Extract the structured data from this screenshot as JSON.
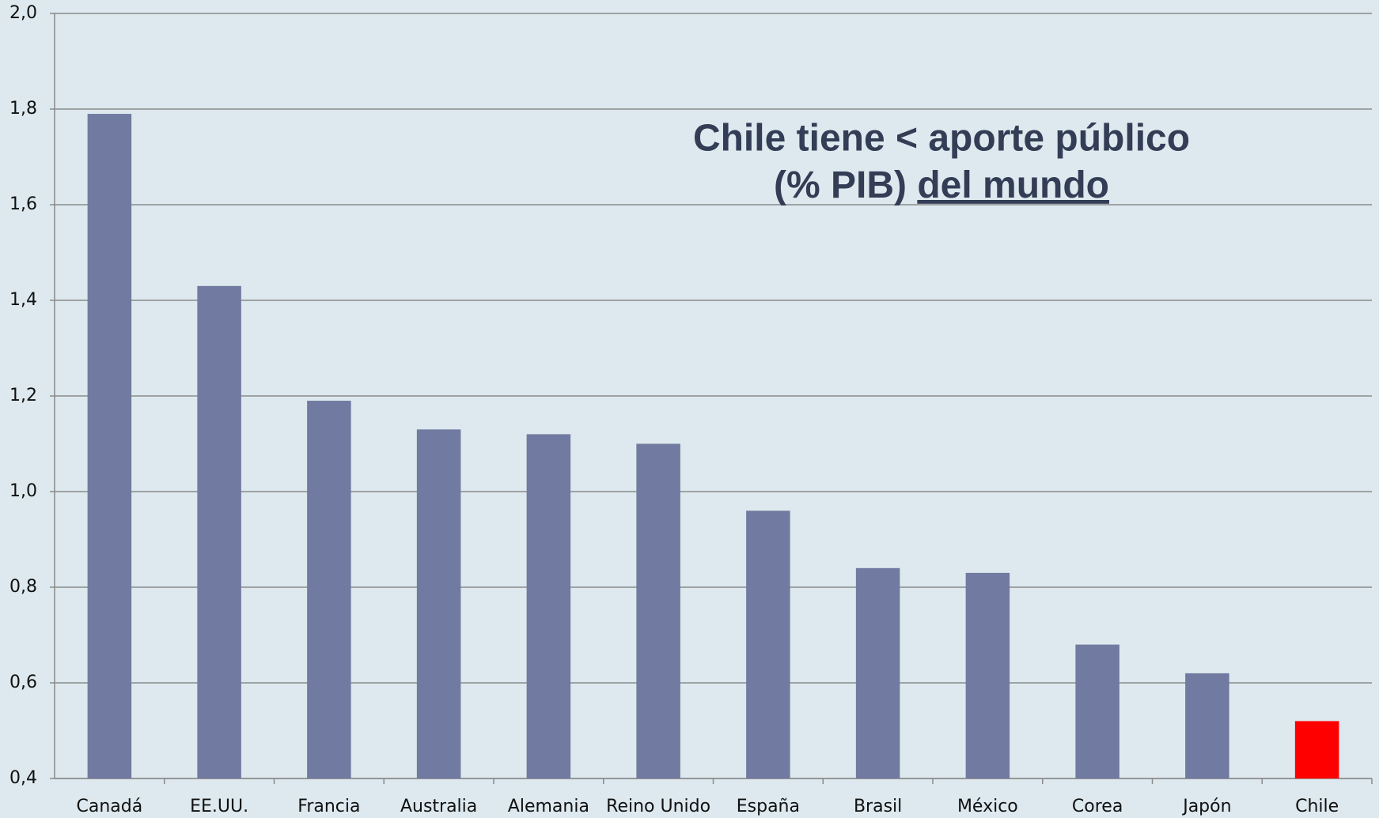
{
  "chart_data": {
    "type": "bar",
    "title": {
      "line1": "Chile tiene < aporte público",
      "line2": "(% PIB)",
      "underlined": "del mundo"
    },
    "categories": [
      "Canadá",
      "EE.UU.",
      "Francia",
      "Australia",
      "Alemania",
      "Reino Unido",
      "España",
      "Brasil",
      "México",
      "Corea",
      "Japón",
      "Chile"
    ],
    "values": [
      1.79,
      1.43,
      1.19,
      1.13,
      1.12,
      1.1,
      0.96,
      0.84,
      0.83,
      0.68,
      0.62,
      0.52
    ],
    "colors": [
      "#717aa0",
      "#717aa0",
      "#717aa0",
      "#717aa0",
      "#717aa0",
      "#717aa0",
      "#717aa0",
      "#717aa0",
      "#717aa0",
      "#717aa0",
      "#717aa0",
      "#ff0000"
    ],
    "ylim": [
      0.4,
      2.0
    ],
    "yticks": [
      {
        "value": 0.4,
        "label": "0,4"
      },
      {
        "value": 0.6,
        "label": "0,6"
      },
      {
        "value": 0.8,
        "label": "0,8"
      },
      {
        "value": 1.0,
        "label": "1,0"
      },
      {
        "value": 1.2,
        "label": "1,2"
      },
      {
        "value": 1.4,
        "label": "1,4"
      },
      {
        "value": 1.6,
        "label": "1,6"
      },
      {
        "value": 1.8,
        "label": "1,8"
      },
      {
        "value": 2.0,
        "label": "2,0"
      }
    ],
    "grid": true
  }
}
